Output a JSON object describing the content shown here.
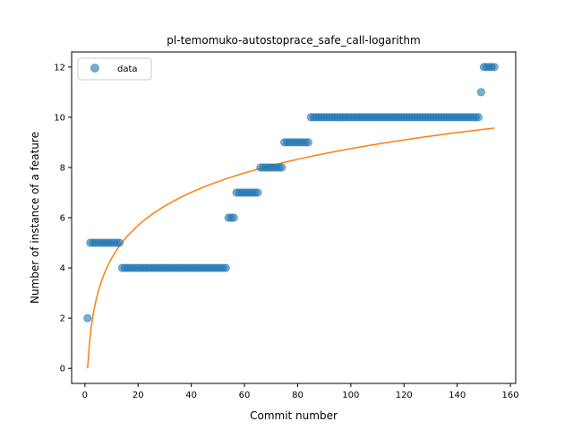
{
  "chart_data": {
    "type": "scatter",
    "title": "pl-temomuko-autostoprace_safe_call-logarithm",
    "xlabel": "Commit number",
    "ylabel": "Number of instance of a feature",
    "xlim": [
      -5,
      162
    ],
    "ylim": [
      -0.6,
      12.6
    ],
    "xticks": [
      0,
      20,
      40,
      60,
      80,
      100,
      120,
      140,
      160
    ],
    "yticks": [
      0,
      2,
      4,
      6,
      8,
      10,
      12
    ],
    "grid": false,
    "legend": {
      "placement": "top-left",
      "entries": [
        "data"
      ]
    },
    "colors": {
      "data": "#1f77b4",
      "fit": "#ff7f0e"
    },
    "series": [
      {
        "name": "data",
        "kind": "scatter",
        "x": [
          1,
          2,
          3,
          4,
          5,
          6,
          7,
          8,
          9,
          10,
          11,
          12,
          13,
          14,
          15,
          16,
          17,
          18,
          19,
          20,
          21,
          22,
          23,
          24,
          25,
          26,
          27,
          28,
          29,
          30,
          31,
          32,
          33,
          34,
          35,
          36,
          37,
          38,
          39,
          40,
          41,
          42,
          43,
          44,
          45,
          46,
          47,
          48,
          49,
          50,
          51,
          52,
          53,
          54,
          55,
          56,
          57,
          58,
          59,
          60,
          61,
          62,
          63,
          64,
          65,
          66,
          67,
          68,
          69,
          70,
          71,
          72,
          73,
          74,
          75,
          76,
          77,
          78,
          79,
          80,
          81,
          82,
          83,
          84,
          85,
          86,
          87,
          88,
          89,
          90,
          91,
          92,
          93,
          94,
          95,
          96,
          97,
          98,
          99,
          100,
          101,
          102,
          103,
          104,
          105,
          106,
          107,
          108,
          109,
          110,
          111,
          112,
          113,
          114,
          115,
          116,
          117,
          118,
          119,
          120,
          121,
          122,
          123,
          124,
          125,
          126,
          127,
          128,
          129,
          130,
          131,
          132,
          133,
          134,
          135,
          136,
          137,
          138,
          139,
          140,
          141,
          142,
          143,
          144,
          145,
          146,
          147,
          148,
          149,
          150,
          151,
          152,
          153,
          154
        ],
        "y": [
          2,
          5,
          5,
          5,
          5,
          5,
          5,
          5,
          5,
          5,
          5,
          5,
          5,
          4,
          4,
          4,
          4,
          4,
          4,
          4,
          4,
          4,
          4,
          4,
          4,
          4,
          4,
          4,
          4,
          4,
          4,
          4,
          4,
          4,
          4,
          4,
          4,
          4,
          4,
          4,
          4,
          4,
          4,
          4,
          4,
          4,
          4,
          4,
          4,
          4,
          4,
          4,
          4,
          6,
          6,
          6,
          7,
          7,
          7,
          7,
          7,
          7,
          7,
          7,
          7,
          8,
          8,
          8,
          8,
          8,
          8,
          8,
          8,
          8,
          9,
          9,
          9,
          9,
          9,
          9,
          9,
          9,
          9,
          9,
          10,
          10,
          10,
          10,
          10,
          10,
          10,
          10,
          10,
          10,
          10,
          10,
          10,
          10,
          10,
          10,
          10,
          10,
          10,
          10,
          10,
          10,
          10,
          10,
          10,
          10,
          10,
          10,
          10,
          10,
          10,
          10,
          10,
          10,
          10,
          10,
          10,
          10,
          10,
          10,
          10,
          10,
          10,
          10,
          10,
          10,
          10,
          10,
          10,
          10,
          10,
          10,
          10,
          10,
          10,
          10,
          10,
          10,
          10,
          10,
          10,
          10,
          10,
          10,
          11,
          12,
          12,
          12,
          12,
          12
        ]
      },
      {
        "kind": "line",
        "function": "logarithm",
        "x_range": [
          1,
          154
        ],
        "coefficients": {
          "a": 1.9,
          "b": 0.0
        }
      }
    ]
  }
}
